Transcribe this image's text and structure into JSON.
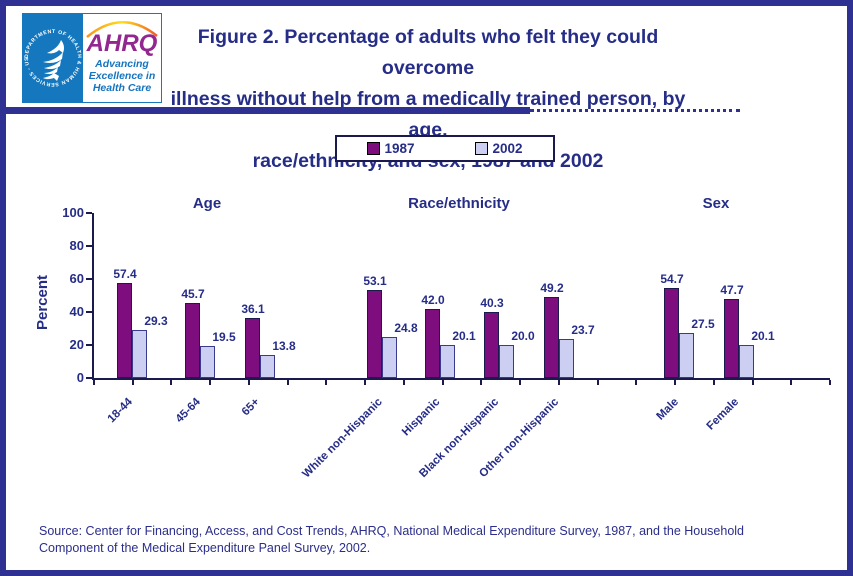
{
  "logo": {
    "hhs_seal_text": "DEPARTMENT OF HEALTH & HUMAN SERVICES - USA",
    "ahrq_acronym": "AHRQ",
    "tagline_lines": [
      "Advancing",
      "Excellence in",
      "Health Care"
    ]
  },
  "title_lines": [
    "Figure 2. Percentage of adults who felt they could overcome",
    "illness without help from a medically trained person, by age,",
    "race/ethnicity, and sex, 1987 and 2002"
  ],
  "legend": {
    "items": [
      {
        "label": "1987",
        "color": "#7E0D7E"
      },
      {
        "label": "2002",
        "color": "#CDCFF2"
      }
    ]
  },
  "chart_data": {
    "type": "bar",
    "ylabel": "Percent",
    "ylim": [
      0,
      100
    ],
    "yticks": [
      0,
      20,
      40,
      60,
      80,
      100
    ],
    "grid": false,
    "legend_position": "top-center",
    "series_names": [
      "1987",
      "2002"
    ],
    "colors": {
      "1987": "#7E0D7E",
      "2002": "#CDCFF2"
    },
    "groups": [
      {
        "title": "Age",
        "categories": [
          "18-44",
          "45-64",
          "65+"
        ],
        "series": [
          {
            "name": "1987",
            "values": [
              57.4,
              45.7,
              36.1
            ]
          },
          {
            "name": "2002",
            "values": [
              29.3,
              19.5,
              13.8
            ]
          }
        ]
      },
      {
        "title": "Race/ethnicity",
        "categories": [
          "White non-Hispanic",
          "Hispanic",
          "Black non-Hispanic",
          "Other non-Hispanic"
        ],
        "series": [
          {
            "name": "1987",
            "values": [
              53.1,
              42.0,
              40.3,
              49.2
            ]
          },
          {
            "name": "2002",
            "values": [
              24.8,
              20.1,
              20.0,
              23.7
            ]
          }
        ]
      },
      {
        "title": "Sex",
        "categories": [
          "Male",
          "Female"
        ],
        "series": [
          {
            "name": "1987",
            "values": [
              54.7,
              47.7
            ]
          },
          {
            "name": "2002",
            "values": [
              27.5,
              20.1
            ]
          }
        ]
      }
    ]
  },
  "source": "Source: Center for Financing, Access, and Cost Trends, AHRQ, National Medical Expenditure Survey, 1987, and the Household Component of the Medical Expenditure Panel Survey, 2002."
}
